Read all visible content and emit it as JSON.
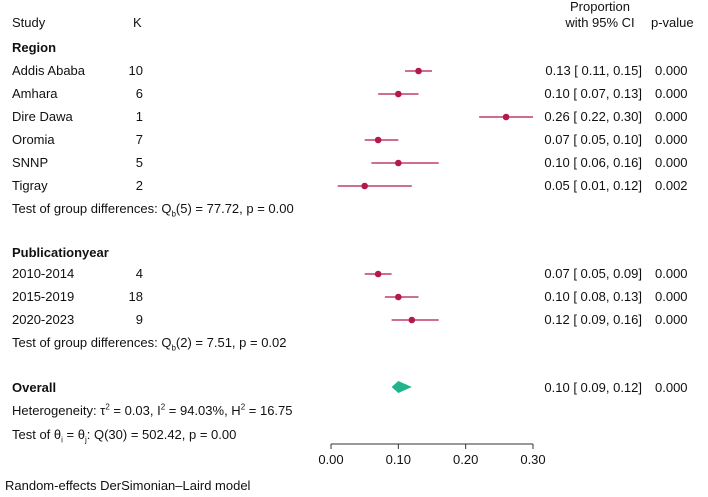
{
  "chart_data": {
    "type": "forest",
    "title": "",
    "headers": {
      "study": "Study",
      "k": "K",
      "proportion_line1": "Proportion",
      "proportion_line2": "with 95% CI",
      "pvalue": "p-value"
    },
    "x_axis": {
      "xlim": [
        0,
        0.3
      ],
      "ticks": [
        0.0,
        0.1,
        0.2,
        0.3
      ],
      "tick_labels": [
        "0.00",
        "0.10",
        "0.20",
        "0.30"
      ]
    },
    "groups": [
      {
        "name": "Region",
        "studies": [
          {
            "label": "Addis Ababa",
            "k": "10",
            "est": 0.13,
            "lo": 0.11,
            "hi": 0.15,
            "ci_text": "0.13 [ 0.11,  0.15]",
            "p": "0.000"
          },
          {
            "label": "Amhara",
            "k": "6",
            "est": 0.1,
            "lo": 0.07,
            "hi": 0.13,
            "ci_text": "0.10 [ 0.07,  0.13]",
            "p": "0.000"
          },
          {
            "label": "Dire Dawa",
            "k": "1",
            "est": 0.26,
            "lo": 0.22,
            "hi": 0.3,
            "ci_text": "0.26 [ 0.22,  0.30]",
            "p": "0.000"
          },
          {
            "label": "Oromia",
            "k": "7",
            "est": 0.07,
            "lo": 0.05,
            "hi": 0.1,
            "ci_text": "0.07 [ 0.05,  0.10]",
            "p": "0.000"
          },
          {
            "label": "SNNP",
            "k": "5",
            "est": 0.1,
            "lo": 0.06,
            "hi": 0.16,
            "ci_text": "0.10 [ 0.06,  0.16]",
            "p": "0.000"
          },
          {
            "label": "Tigray",
            "k": "2",
            "est": 0.05,
            "lo": 0.01,
            "hi": 0.12,
            "ci_text": "0.05 [ 0.01,  0.12]",
            "p": "0.002"
          }
        ],
        "test_prefix": "Test of group differences: Q",
        "test_sub": "b",
        "test_suffix": "(5) = 77.72, p = 0.00"
      },
      {
        "name": "Publicationyear",
        "studies": [
          {
            "label": "2010-2014",
            "k": "4",
            "est": 0.07,
            "lo": 0.05,
            "hi": 0.09,
            "ci_text": "0.07 [ 0.05,  0.09]",
            "p": "0.000"
          },
          {
            "label": "2015-2019",
            "k": "18",
            "est": 0.1,
            "lo": 0.08,
            "hi": 0.13,
            "ci_text": "0.10 [ 0.08,  0.13]",
            "p": "0.000"
          },
          {
            "label": "2020-2023",
            "k": "9",
            "est": 0.12,
            "lo": 0.09,
            "hi": 0.16,
            "ci_text": "0.12 [ 0.09,  0.16]",
            "p": "0.000"
          }
        ],
        "test_prefix": "Test of group differences: Q",
        "test_sub": "b",
        "test_suffix": "(2) = 7.51, p = 0.02"
      }
    ],
    "overall": {
      "label": "Overall",
      "est": 0.1,
      "lo": 0.09,
      "hi": 0.12,
      "ci_text": "0.10 [ 0.09,  0.12]",
      "p": "0.000",
      "heterogeneity_prefix": "Heterogeneity: τ",
      "heterogeneity_tau_sup": "2",
      "heterogeneity_mid1": " = 0.03, I",
      "heterogeneity_i_sup": "2",
      "heterogeneity_mid2": " = 94.03%, H",
      "heterogeneity_h_sup": "2",
      "heterogeneity_end": " = 16.75",
      "theta_prefix": "Test of θ",
      "theta_sub_i": "i",
      "theta_mid": " = θ",
      "theta_sub_j": "j",
      "theta_suffix": ": Q(30) = 502.42, p = 0.00"
    },
    "footnote": "Random-effects DerSimonian–Laird model",
    "colors": {
      "study_marker": "#b5174f",
      "overall_diamond": "#1fb58b",
      "axis": "#333333"
    }
  }
}
